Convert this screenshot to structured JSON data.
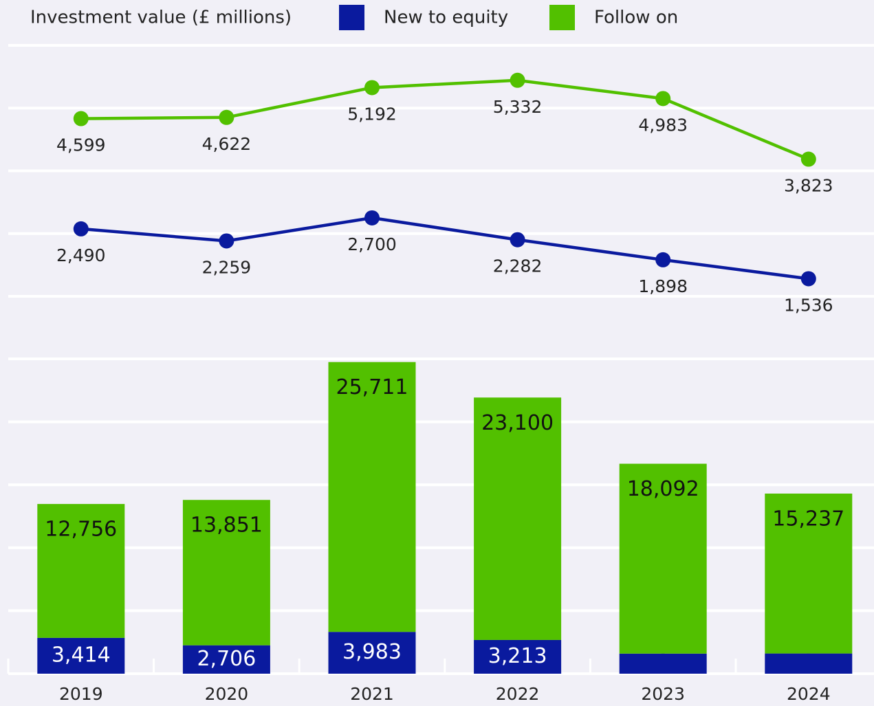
{
  "chart_data": [
    {
      "type": "line",
      "series": [
        {
          "color": "#52c000",
          "values": [
            4599,
            4622,
            5192,
            5332,
            4983,
            3823
          ]
        },
        {
          "color": "#0a1a9e",
          "values": [
            2490,
            2259,
            2700,
            2282,
            1898,
            1536
          ]
        }
      ],
      "ylim": [
        1200,
        6000
      ],
      "yticks": [
        1200,
        2400,
        3600,
        4800,
        6000
      ],
      "grid": true
    },
    {
      "type": "bar",
      "stacked": true,
      "title": "Investment value (£ millions)",
      "categories": [
        "2019",
        "2020",
        "2021",
        "2022",
        "2023",
        "2024"
      ],
      "series": [
        {
          "name": "New to equity",
          "color": "#0a1a9e",
          "values": [
            3414,
            2706,
            3983,
            3213,
            1913,
            1925
          ]
        },
        {
          "name": "Follow on",
          "color": "#52c000",
          "values": [
            12756,
            13851,
            25711,
            23100,
            18092,
            15237
          ]
        }
      ],
      "ylim": [
        0,
        30000
      ],
      "yticks": [
        0,
        6000,
        12000,
        18000,
        24000,
        30000
      ],
      "grid": true
    }
  ]
}
